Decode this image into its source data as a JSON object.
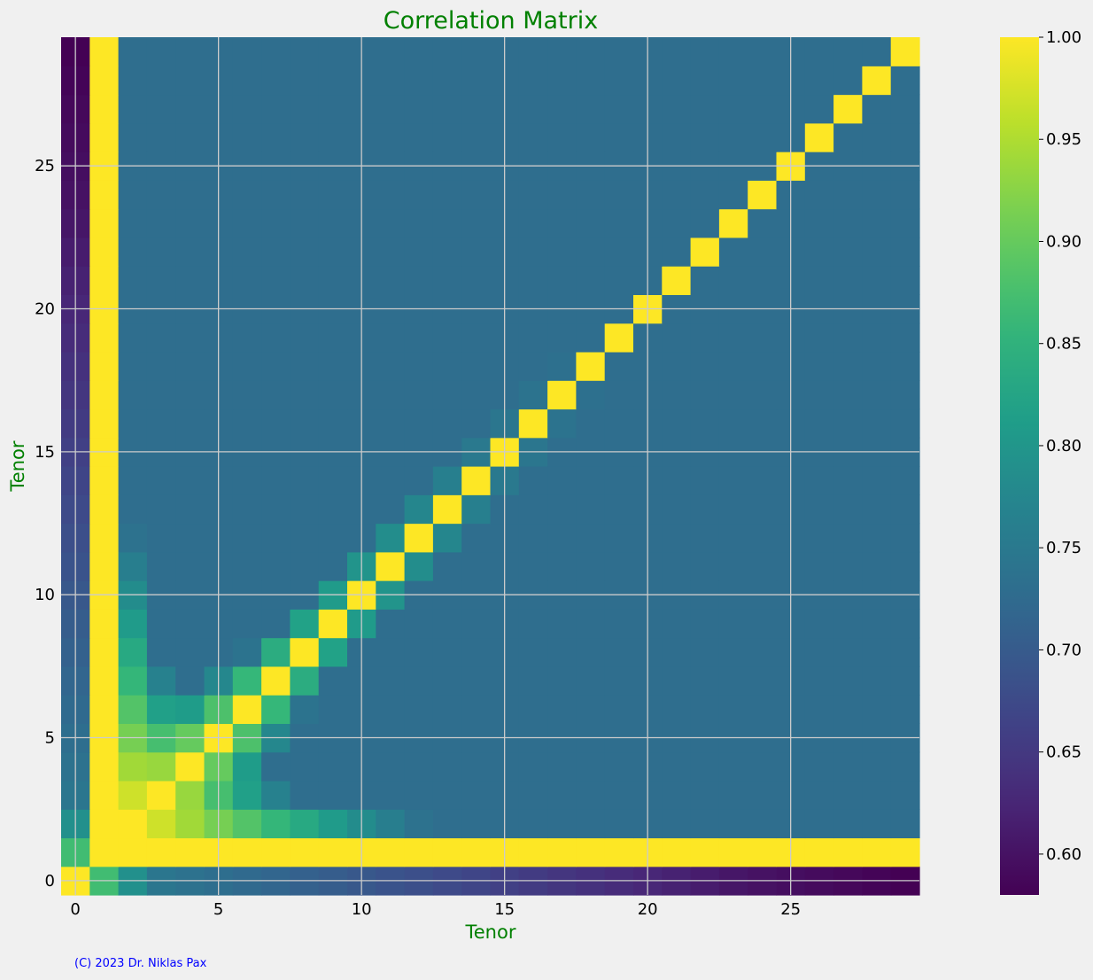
{
  "chart_data": {
    "type": "heatmap",
    "title": "Correlation Matrix",
    "xlabel": "Tenor",
    "ylabel": "Tenor",
    "n": 30,
    "x_ticks": [
      0,
      5,
      10,
      15,
      20,
      25
    ],
    "y_ticks": [
      0,
      5,
      10,
      15,
      20,
      25
    ],
    "colorbar": {
      "vmin": 0.58,
      "vmax": 1.0,
      "ticks": [
        0.6,
        0.65,
        0.7,
        0.75,
        0.8,
        0.85,
        0.9,
        0.95,
        1.0
      ],
      "tick_labels": [
        "0.60",
        "0.65",
        "0.70",
        "0.75",
        "0.80",
        "0.85",
        "0.90",
        "0.95",
        "1.00"
      ]
    },
    "colormap": "viridis",
    "grid": true,
    "title_color": "#008000",
    "label_color": "#008000",
    "row0": [
      1.0,
      0.87,
      0.79,
      0.745,
      0.738,
      0.731,
      0.724,
      0.717,
      0.71,
      0.703,
      0.696,
      0.689,
      0.682,
      0.675,
      0.668,
      0.661,
      0.654,
      0.647,
      0.64,
      0.633,
      0.626,
      0.619,
      0.612,
      0.605,
      0.6,
      0.596,
      0.592,
      0.588,
      0.584,
      0.58
    ],
    "col_anchors": [
      [
        1,
        1.0
      ],
      [
        2,
        0.97
      ],
      [
        4,
        0.9
      ],
      [
        8,
        0.82
      ],
      [
        14,
        0.75
      ],
      [
        20,
        0.72
      ],
      [
        29,
        0.68
      ]
    ],
    "decay": 0.02,
    "floor": 0.73
  },
  "footer": {
    "copyright": "(C) 2023 Dr. Niklas Pax",
    "copyright_color": "#0000ff"
  }
}
